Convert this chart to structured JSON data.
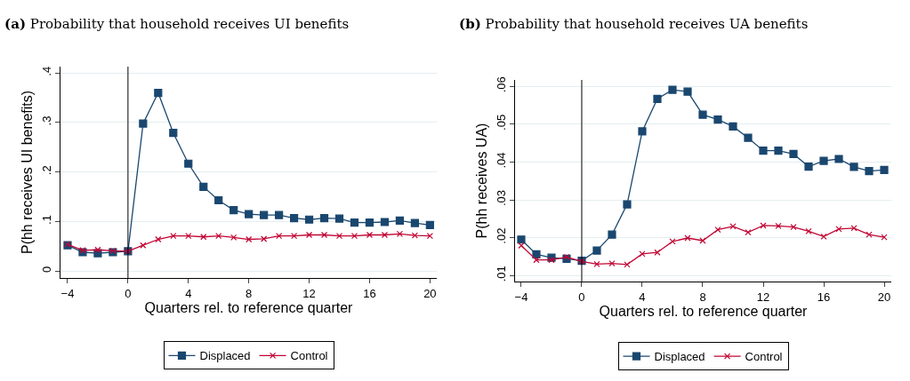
{
  "chart_data": [
    {
      "type": "line",
      "title": "(a) Probability that household receives UI benefits",
      "xlabel": "Quarters rel. to reference quarter",
      "ylabel": "P(hh receives UI benefits)",
      "x": [
        -4,
        -3,
        -2,
        -1,
        0,
        1,
        2,
        3,
        4,
        5,
        6,
        7,
        8,
        9,
        10,
        11,
        12,
        13,
        14,
        15,
        16,
        17,
        18,
        19,
        20
      ],
      "series": [
        {
          "name": "Displaced",
          "color": "#1a476f",
          "marker": "square",
          "values": [
            0.052,
            0.038,
            0.036,
            0.038,
            0.04,
            0.298,
            0.36,
            0.279,
            0.217,
            0.17,
            0.143,
            0.123,
            0.115,
            0.113,
            0.113,
            0.107,
            0.104,
            0.107,
            0.106,
            0.098,
            0.098,
            0.099,
            0.102,
            0.097,
            0.093
          ]
        },
        {
          "name": "Control",
          "color": "#c10534",
          "marker": "cross",
          "values": [
            0.054,
            0.042,
            0.043,
            0.041,
            0.04,
            0.052,
            0.064,
            0.071,
            0.071,
            0.069,
            0.071,
            0.068,
            0.064,
            0.065,
            0.071,
            0.071,
            0.073,
            0.073,
            0.071,
            0.071,
            0.073,
            0.073,
            0.075,
            0.072,
            0.071
          ]
        }
      ],
      "xlim": [
        -4.47,
        20.45
      ],
      "xticks": [
        {
          "value": -4,
          "label": "−4"
        },
        0,
        4,
        8,
        12,
        16,
        20
      ],
      "ylim": [
        -0.014,
        0.413
      ],
      "yticks": [
        0,
        {
          "value": 0.1,
          "label": ".1"
        },
        {
          "value": 0.2,
          "label": ".2"
        },
        {
          "value": 0.3,
          "label": ".3"
        },
        {
          "value": 0.4,
          "label": ".4"
        }
      ],
      "ref_lines": [
        {
          "axis": "x",
          "value": 0,
          "color": "#000000"
        }
      ],
      "grid": "y",
      "legend": "bottom"
    },
    {
      "type": "line",
      "title": "(b) Probability that household receives UA benefits",
      "xlabel": "Quarters rel. to reference quarter",
      "ylabel": "P(hh receives UA)",
      "x": [
        -4,
        -3,
        -2,
        -1,
        0,
        1,
        2,
        3,
        4,
        5,
        6,
        7,
        8,
        9,
        10,
        11,
        12,
        13,
        14,
        15,
        16,
        17,
        18,
        19,
        20
      ],
      "series": [
        {
          "name": "Displaced",
          "color": "#1a476f",
          "marker": "square",
          "values": [
            0.0195,
            0.0156,
            0.0147,
            0.0144,
            0.0139,
            0.0166,
            0.0208,
            0.0288,
            0.0481,
            0.0567,
            0.0591,
            0.0586,
            0.0525,
            0.0512,
            0.0494,
            0.0464,
            0.043,
            0.043,
            0.0421,
            0.0388,
            0.0403,
            0.0408,
            0.0387,
            0.0376,
            0.0379
          ]
        },
        {
          "name": "Control",
          "color": "#c10534",
          "marker": "cross",
          "values": [
            0.0179,
            0.0141,
            0.0141,
            0.0149,
            0.0137,
            0.013,
            0.0132,
            0.0129,
            0.0157,
            0.0161,
            0.019,
            0.0199,
            0.0192,
            0.0221,
            0.023,
            0.0214,
            0.0232,
            0.0231,
            0.0228,
            0.0217,
            0.0203,
            0.0223,
            0.0225,
            0.0208,
            0.0201
          ]
        }
      ],
      "xlim": [
        -4.41,
        20.47
      ],
      "xticks": [
        {
          "value": -4,
          "label": "−4"
        },
        0,
        4,
        8,
        12,
        16,
        20
      ],
      "ylim": [
        0.0084,
        0.0617
      ],
      "yticks": [
        {
          "value": 0.01,
          "label": ".01"
        },
        {
          "value": 0.02,
          "label": ".02"
        },
        {
          "value": 0.03,
          "label": ".03"
        },
        {
          "value": 0.04,
          "label": ".04"
        },
        {
          "value": 0.05,
          "label": ".05"
        },
        {
          "value": 0.06,
          "label": ".06"
        }
      ],
      "ref_lines": [
        {
          "axis": "x",
          "value": 0,
          "color": "#000000"
        }
      ],
      "grid": "y",
      "legend": "bottom"
    }
  ]
}
